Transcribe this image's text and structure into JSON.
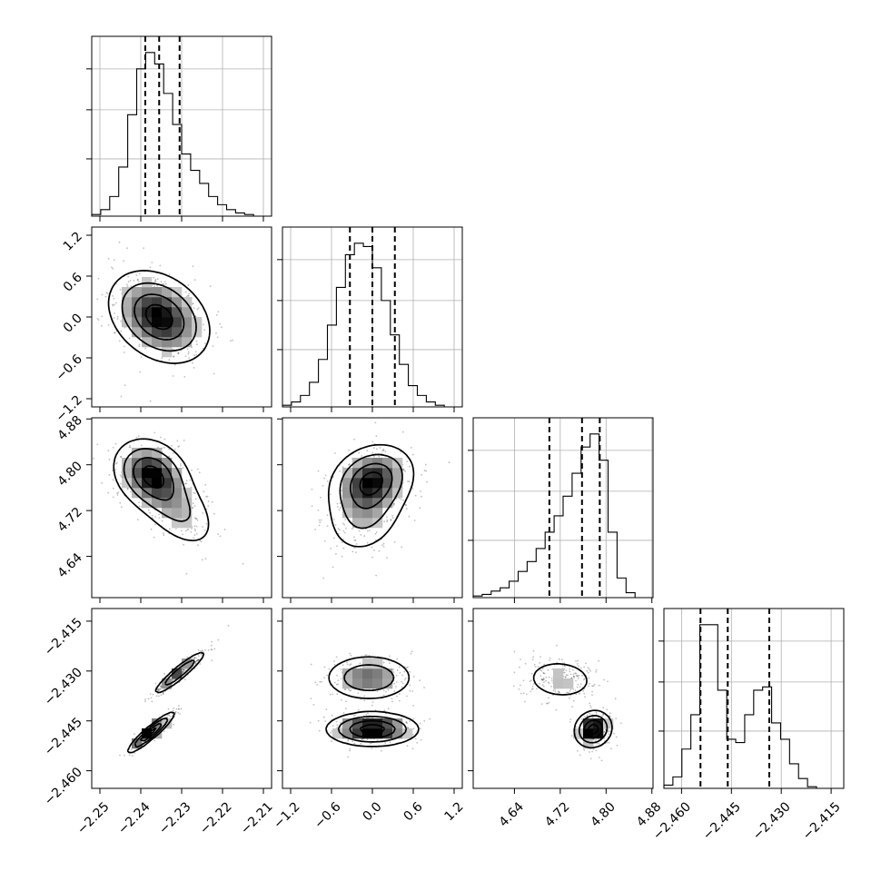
{
  "chart_data": {
    "type": "corner",
    "parameters": [
      {
        "range": [
          -2.252,
          -2.208
        ],
        "ticks": [
          -2.25,
          -2.24,
          -2.23,
          -2.22,
          -2.21
        ],
        "tick_labels": [
          "−2.25",
          "−2.24",
          "−2.23",
          "−2.22",
          "−2.21"
        ]
      },
      {
        "range": [
          -1.32,
          1.32
        ],
        "ticks": [
          -1.2,
          -0.6,
          0.0,
          0.6,
          1.2
        ],
        "tick_labels": [
          "−1.2",
          "−0.6",
          "0.0",
          "0.6",
          "1.2"
        ]
      },
      {
        "range": [
          4.568,
          4.882
        ],
        "ticks": [
          4.64,
          4.72,
          4.8,
          4.88
        ],
        "tick_labels": [
          "4.64",
          "4.72",
          "4.80",
          "4.88"
        ]
      },
      {
        "range": [
          -2.4653,
          -2.4112
        ],
        "ticks": [
          -2.46,
          -2.445,
          -2.43,
          -2.415
        ],
        "tick_labels": [
          "−2.460",
          "−2.445",
          "−2.430",
          "−2.415"
        ]
      }
    ],
    "histograms": [
      {
        "bins": [
          -2.252,
          -2.2498,
          -2.2476,
          -2.2454,
          -2.2432,
          -2.241,
          -2.2388,
          -2.2366,
          -2.2344,
          -2.2322,
          -2.23,
          -2.2278,
          -2.2256,
          -2.2234,
          -2.2212,
          -2.219,
          -2.2168,
          -2.2146,
          -2.2124,
          -2.2102,
          -2.208
        ],
        "counts": [
          1,
          4,
          12,
          30,
          62,
          90,
          100,
          93,
          75,
          56,
          38,
          28,
          20,
          12,
          7,
          4,
          2,
          1,
          0,
          0
        ],
        "quantiles": [
          -2.2389,
          -2.2355,
          -2.2305
        ]
      },
      {
        "bins": [
          -1.32,
          -1.188,
          -1.056,
          -0.924,
          -0.792,
          -0.66,
          -0.528,
          -0.396,
          -0.264,
          -0.132,
          0.0,
          0.132,
          0.264,
          0.396,
          0.528,
          0.66,
          0.792,
          0.924,
          1.056,
          1.188,
          1.32
        ],
        "counts": [
          1,
          3,
          7,
          15,
          29,
          50,
          73,
          93,
          100,
          98,
          85,
          65,
          44,
          26,
          13,
          7,
          3,
          1,
          0,
          0
        ],
        "quantiles": [
          -0.33,
          0.0,
          0.33
        ]
      },
      {
        "bins": [
          4.568,
          4.5837,
          4.5994,
          4.6151,
          4.6308,
          4.6465,
          4.6622,
          4.6779,
          4.6936,
          4.7093,
          4.725,
          4.7407,
          4.7564,
          4.7721,
          4.7878,
          4.8035,
          4.8192,
          4.8349,
          4.8506,
          4.8663,
          4.882
        ],
        "counts": [
          1,
          2,
          4,
          6,
          10,
          16,
          22,
          30,
          40,
          50,
          62,
          76,
          92,
          100,
          84,
          40,
          12,
          3,
          0,
          0
        ],
        "quantiles": [
          4.701,
          4.758,
          4.789
        ]
      },
      {
        "bins": [
          -2.4653,
          -2.4626,
          -2.4599,
          -2.4572,
          -2.4545,
          -2.4518,
          -2.4491,
          -2.4464,
          -2.4437,
          -2.441,
          -2.4383,
          -2.4356,
          -2.4329,
          -2.4302,
          -2.4275,
          -2.4248,
          -2.4221,
          -2.4194,
          -2.4167,
          -2.414,
          -2.4112
        ],
        "counts": [
          2,
          7,
          24,
          45,
          100,
          100,
          60,
          30,
          28,
          45,
          60,
          62,
          40,
          30,
          15,
          6,
          1,
          0,
          0,
          0
        ],
        "quantiles": [
          -2.4543,
          -2.4461,
          -2.4336
        ]
      }
    ],
    "pairs": [
      {
        "x": 0,
        "y": 1,
        "modes": [
          {
            "mx": -2.2355,
            "my": 0.0,
            "sx": 0.006,
            "sy": 0.33,
            "rho": -0.3,
            "w": 1
          }
        ]
      },
      {
        "x": 0,
        "y": 2,
        "modes": [
          {
            "mx": -2.2375,
            "my": 4.785,
            "sx": 0.0045,
            "sy": 0.03,
            "rho": -0.2,
            "w": 0.6
          },
          {
            "mx": -2.232,
            "my": 4.73,
            "sx": 0.0055,
            "sy": 0.04,
            "rho": -0.55,
            "w": 0.4
          }
        ]
      },
      {
        "x": 1,
        "y": 2,
        "modes": [
          {
            "mx": 0.0,
            "my": 4.775,
            "sx": 0.3,
            "sy": 0.03,
            "rho": 0.2,
            "w": 0.6
          },
          {
            "mx": -0.1,
            "my": 4.72,
            "sx": 0.3,
            "sy": 0.04,
            "rho": 0.2,
            "w": 0.4
          }
        ]
      },
      {
        "x": 0,
        "y": 3,
        "modes": [
          {
            "mx": -2.2375,
            "my": -2.4485,
            "sx": 0.0028,
            "sy": 0.003,
            "rho": 0.93,
            "w": 0.55
          },
          {
            "mx": -2.2305,
            "my": -2.4305,
            "sx": 0.0033,
            "sy": 0.0034,
            "rho": 0.93,
            "w": 0.45
          }
        ]
      },
      {
        "x": 1,
        "y": 3,
        "modes": [
          {
            "mx": 0.0,
            "my": -2.4475,
            "sx": 0.33,
            "sy": 0.0025,
            "rho": 0.0,
            "w": 0.55
          },
          {
            "mx": -0.05,
            "my": -2.432,
            "sx": 0.33,
            "sy": 0.0035,
            "rho": 0.0,
            "w": 0.45
          }
        ]
      },
      {
        "x": 2,
        "y": 3,
        "modes": [
          {
            "mx": 4.7775,
            "my": -2.4475,
            "sx": 0.016,
            "sy": 0.0027,
            "rho": 0.1,
            "w": 0.55
          },
          {
            "mx": 4.72,
            "my": -2.4325,
            "sx": 0.035,
            "sy": 0.0035,
            "rho": -0.1,
            "w": 0.45
          }
        ]
      }
    ]
  }
}
